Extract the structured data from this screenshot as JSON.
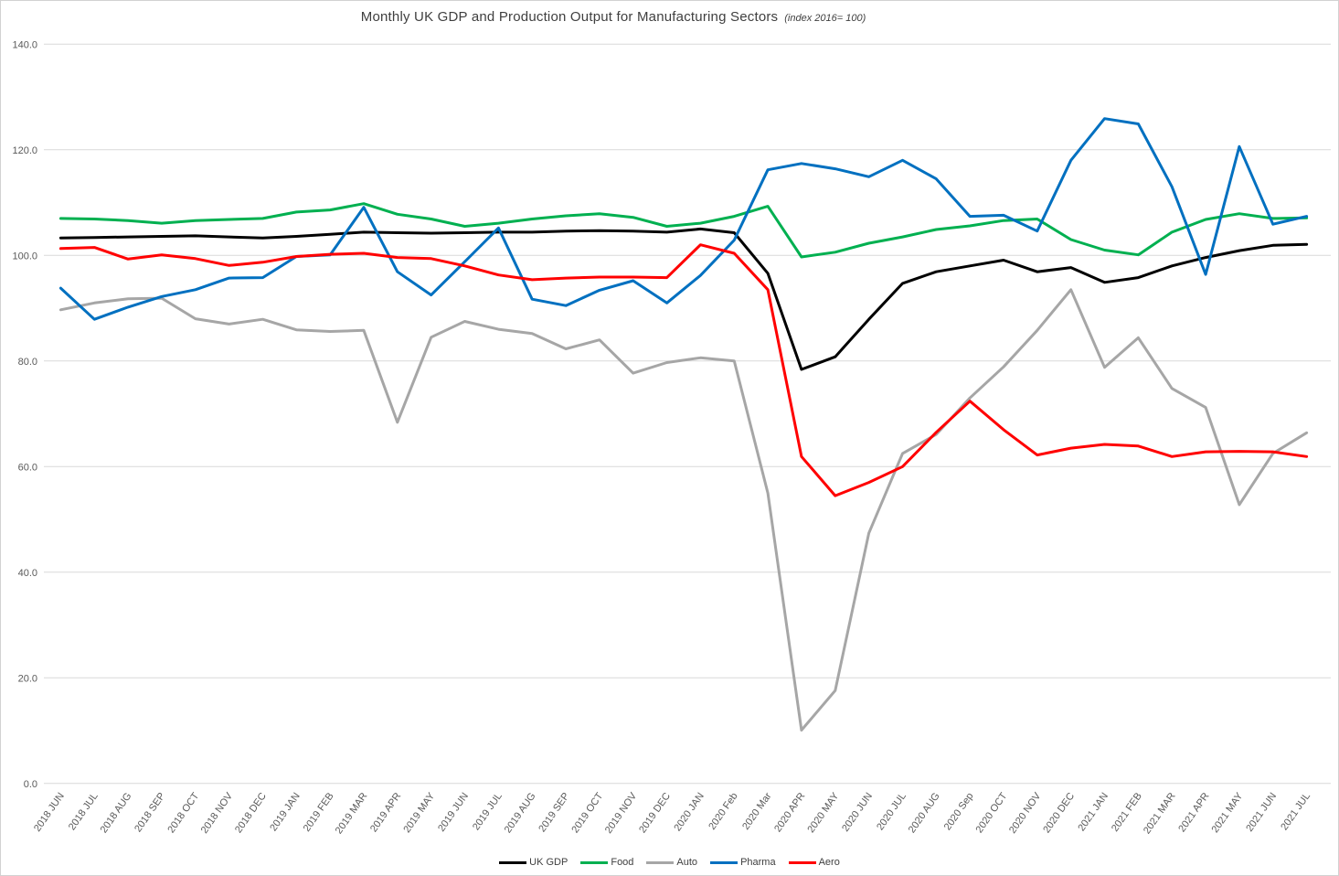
{
  "chart_data": {
    "type": "line",
    "title": "Monthly UK GDP and Production Output for Manufacturing Sectors",
    "subtitle": "(index 2016= 100)",
    "ylim": [
      0,
      140
    ],
    "ytick_step": 20,
    "y_tick_labels": [
      "0.0",
      "20.0",
      "40.0",
      "60.0",
      "80.0",
      "100.0",
      "120.0",
      "140.0"
    ],
    "grid": true,
    "legend_position": "bottom",
    "categories": [
      "2018 JUN",
      "2018 JUL",
      "2018 AUG",
      "2018 SEP",
      "2018 OCT",
      "2018 NOV",
      "2018 DEC",
      "2019 JAN",
      "2019 FEB",
      "2019 MAR",
      "2019 APR",
      "2019 MAY",
      "2019 JUN",
      "2019 JUL",
      "2019 AUG",
      "2019 SEP",
      "2019 OCT",
      "2019 NOV",
      "2019 DEC",
      "2020 JAN",
      "2020 Feb",
      "2020 Mar",
      "2020 APR",
      "2020 MAY",
      "2020 JUN",
      "2020 JUL",
      "2020 AUG",
      "2020 Sep",
      "2020 OCT",
      "2020 NOV",
      "2020 DEC",
      "2021 JAN",
      "2021 FEB",
      "2021 MAR",
      "2021 APR",
      "2021 MAY",
      "2021 JUN",
      "2021 JUL"
    ],
    "series": [
      {
        "name": "UK GDP",
        "color": "#000000",
        "values": [
          103.3,
          103.4,
          103.5,
          103.6,
          103.7,
          103.5,
          103.3,
          103.6,
          104.0,
          104.4,
          104.3,
          104.2,
          104.3,
          104.4,
          104.4,
          104.6,
          104.7,
          104.6,
          104.4,
          105.0,
          104.3,
          96.6,
          78.4,
          80.8,
          87.9,
          94.7,
          96.9,
          98.0,
          99.1,
          96.9,
          97.7,
          94.9,
          95.8,
          98.0,
          99.6,
          100.9,
          101.9,
          102.1
        ]
      },
      {
        "name": "Food",
        "color": "#00B050",
        "values": [
          107.0,
          106.9,
          106.6,
          106.1,
          106.6,
          106.8,
          107.0,
          108.2,
          108.6,
          109.8,
          107.8,
          106.9,
          105.5,
          106.1,
          106.9,
          107.5,
          107.9,
          107.2,
          105.5,
          106.1,
          107.4,
          109.3,
          99.7,
          100.6,
          102.3,
          103.5,
          104.9,
          105.6,
          106.6,
          106.9,
          103.0,
          101.0,
          100.1,
          104.4,
          106.8,
          107.9,
          107.0,
          107.1
        ]
      },
      {
        "name": "Auto",
        "color": "#A6A6A6",
        "values": [
          89.7,
          91.0,
          91.8,
          91.9,
          88.0,
          87.0,
          87.9,
          85.9,
          85.6,
          85.8,
          68.4,
          84.5,
          87.5,
          86.0,
          85.2,
          82.3,
          84.0,
          77.7,
          79.7,
          80.6,
          80.0,
          55.0,
          10.1,
          17.6,
          47.4,
          62.5,
          66.1,
          73.0,
          78.9,
          85.8,
          93.5,
          78.8,
          84.4,
          74.8,
          71.2,
          52.8,
          62.5,
          66.4
        ]
      },
      {
        "name": "Pharma",
        "color": "#0070C0",
        "values": [
          93.8,
          87.9,
          90.2,
          92.2,
          93.5,
          95.7,
          95.8,
          99.8,
          100.1,
          109.1,
          96.9,
          92.5,
          98.8,
          105.2,
          91.7,
          90.5,
          93.4,
          95.2,
          91.0,
          96.2,
          102.9,
          116.2,
          117.4,
          116.4,
          114.9,
          118.0,
          114.5,
          107.4,
          107.6,
          104.6,
          118.0,
          125.9,
          124.9,
          113.0,
          96.4,
          120.6,
          105.9,
          107.4
        ]
      },
      {
        "name": "Aero",
        "color": "#FF0000",
        "values": [
          101.3,
          101.5,
          99.3,
          100.1,
          99.4,
          98.1,
          98.7,
          99.8,
          100.2,
          100.4,
          99.6,
          99.4,
          98.0,
          96.3,
          95.4,
          95.7,
          95.9,
          95.9,
          95.8,
          102.0,
          100.4,
          93.5,
          61.9,
          54.5,
          57.0,
          60.0,
          66.5,
          72.4,
          67.0,
          62.2,
          63.5,
          64.2,
          63.9,
          61.9,
          62.8,
          62.9,
          62.8,
          61.9
        ]
      }
    ],
    "axis_label_color": "#595959",
    "gridline_color": "#D9D9D9"
  }
}
